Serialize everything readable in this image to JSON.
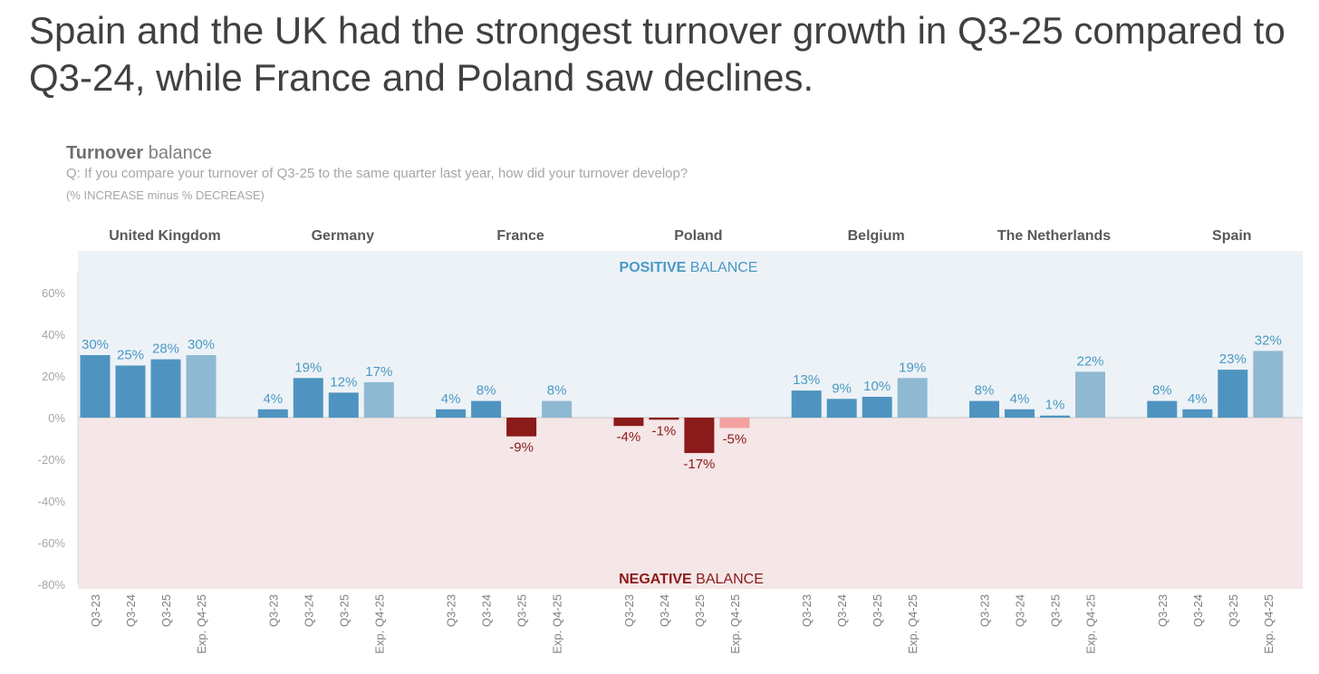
{
  "headline": "Spain and the UK had the strongest turnover growth in Q3-25 compared to Q3-24, while France and Poland saw declines.",
  "chart_data": {
    "type": "bar",
    "title_bold": "Turnover",
    "title_rest": " balance",
    "subtitle": "Q: If you compare your turnover of Q3-25 to the same quarter last year, how did your turnover develop?",
    "note": "(% INCREASE minus % DECREASE)",
    "positive_label_bold": "POSITIVE",
    "positive_label_rest": " BALANCE",
    "negative_label_bold": "NEGATIVE",
    "negative_label_rest": " BALANCE",
    "ylim": [
      -80,
      60
    ],
    "yticks": [
      "60%",
      "40%",
      "20%",
      "0%",
      "-20%",
      "-40%",
      "-60%",
      "-80%"
    ],
    "ytick_values": [
      60,
      40,
      20,
      0,
      -20,
      -40,
      -60,
      -80
    ],
    "categories": [
      "Q3-23",
      "Q3-24",
      "Q3-25",
      "Exp. Q4-25"
    ],
    "groups": [
      {
        "name": "United Kingdom",
        "values": [
          30,
          25,
          28,
          30
        ]
      },
      {
        "name": "Germany",
        "values": [
          4,
          19,
          12,
          17
        ]
      },
      {
        "name": "France",
        "values": [
          4,
          8,
          -9,
          8
        ]
      },
      {
        "name": "Poland",
        "values": [
          -4,
          -1,
          -17,
          -5
        ]
      },
      {
        "name": "Belgium",
        "values": [
          13,
          9,
          10,
          19
        ]
      },
      {
        "name": "The Netherlands",
        "values": [
          8,
          4,
          1,
          22
        ]
      },
      {
        "name": "Spain",
        "values": [
          8,
          4,
          23,
          32
        ]
      }
    ],
    "colors": {
      "pos": "#4f94c0",
      "pos_exp": "#8fb8d2",
      "neg": "#8b1a1a",
      "neg_exp": "#f4a0a0",
      "pos_bg": "#edf2f7",
      "neg_bg": "#f5e6e7",
      "pos_text": "#4a9ac4",
      "neg_text": "#8b1a1a"
    }
  }
}
